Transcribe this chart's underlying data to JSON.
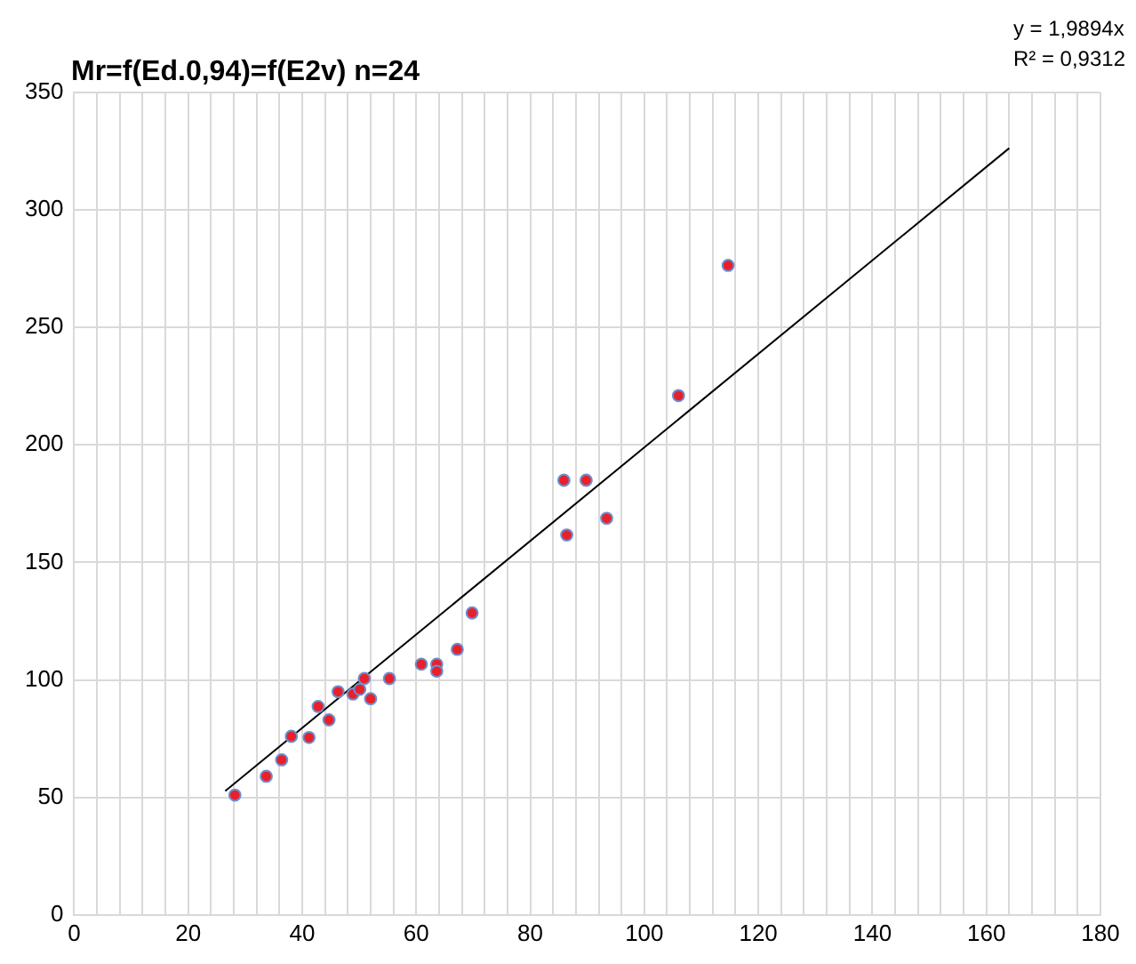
{
  "chart_data": {
    "type": "scatter",
    "title": "Mr=f(Ed.0,94)=f(E2v) n=24",
    "annotations": [
      "y = 1,9894x",
      "R² = 0,9312"
    ],
    "series": [
      {
        "type": "scatter",
        "color": "#e8202a",
        "marker": "circle",
        "x": [
          28.2,
          33.7,
          36.4,
          38.1,
          41.2,
          42.8,
          44.7,
          46.3,
          48.9,
          50.1,
          50.9,
          52,
          55.3,
          60.9,
          63.6,
          63.6,
          67.2,
          69.8,
          85.9,
          86.4,
          89.8,
          93.4,
          106,
          114.7
        ],
        "values": [
          51,
          59,
          66,
          76,
          75.5,
          88.7,
          83,
          95,
          94,
          96,
          100.6,
          92,
          100.6,
          106.7,
          106.7,
          103.7,
          113,
          128.5,
          185,
          161.7,
          185,
          168.8,
          221,
          276.4
        ]
      },
      {
        "type": "line",
        "color": "#000000",
        "marker": "none",
        "x": [
          26.5,
          164
        ],
        "values": [
          52.7,
          326.3
        ]
      }
    ],
    "xlim": [
      0,
      180
    ],
    "xticks": [
      0,
      {
        "value": 4,
        "label": null
      },
      {
        "value": 8,
        "label": null
      },
      {
        "value": 12,
        "label": null
      },
      {
        "value": 16,
        "label": null
      },
      20,
      {
        "value": 24,
        "label": null
      },
      {
        "value": 28,
        "label": null
      },
      {
        "value": 32,
        "label": null
      },
      {
        "value": 36,
        "label": null
      },
      40,
      {
        "value": 44,
        "label": null
      },
      {
        "value": 48,
        "label": null
      },
      {
        "value": 52,
        "label": null
      },
      {
        "value": 56,
        "label": null
      },
      60,
      {
        "value": 64,
        "label": null
      },
      {
        "value": 68,
        "label": null
      },
      {
        "value": 72,
        "label": null
      },
      {
        "value": 76,
        "label": null
      },
      80,
      {
        "value": 84,
        "label": null
      },
      {
        "value": 88,
        "label": null
      },
      {
        "value": 92,
        "label": null
      },
      {
        "value": 96,
        "label": null
      },
      100,
      {
        "value": 104,
        "label": null
      },
      {
        "value": 108,
        "label": null
      },
      {
        "value": 112,
        "label": null
      },
      {
        "value": 116,
        "label": null
      },
      120,
      {
        "value": 124,
        "label": null
      },
      {
        "value": 128,
        "label": null
      },
      {
        "value": 132,
        "label": null
      },
      {
        "value": 136,
        "label": null
      },
      140,
      {
        "value": 144,
        "label": null
      },
      {
        "value": 148,
        "label": null
      },
      {
        "value": 152,
        "label": null
      },
      {
        "value": 156,
        "label": null
      },
      160,
      {
        "value": 164,
        "label": null
      },
      {
        "value": 168,
        "label": null
      },
      {
        "value": 172,
        "label": null
      },
      {
        "value": 176,
        "label": null
      },
      180
    ],
    "ylim": [
      0,
      350
    ],
    "yticks": [
      0,
      50,
      100,
      150,
      200,
      250,
      300,
      350
    ],
    "grid": true,
    "legend": false
  }
}
